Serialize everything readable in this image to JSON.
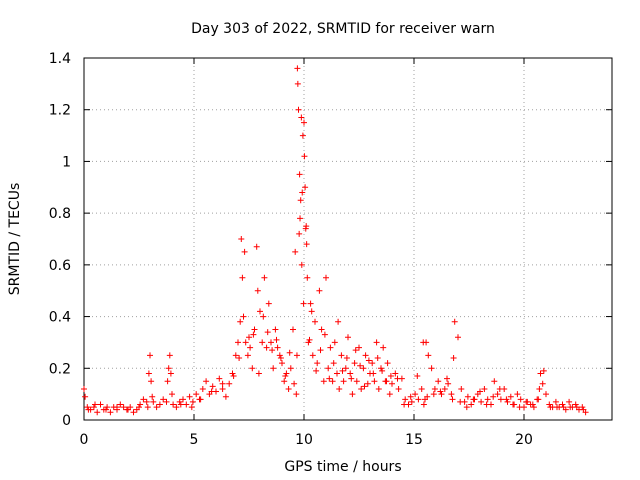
{
  "chart_data": {
    "type": "scatter",
    "title": "Day 303 of 2022, SRMTID for receiver warn",
    "xlabel": "GPS time / hours",
    "ylabel": "SRMTID / TECUs",
    "xlim": [
      0,
      24
    ],
    "ylim": [
      0,
      1.4
    ],
    "xticks": [
      0,
      5,
      10,
      15,
      20
    ],
    "xtick_labels": [
      "0",
      "5",
      "10",
      "15",
      "20"
    ],
    "yticks": [
      0,
      0.2,
      0.4,
      0.6,
      0.8,
      1.0,
      1.2,
      1.4
    ],
    "ytick_labels": [
      "0",
      "0.2",
      "0.4",
      "0.6",
      "0.8",
      "1",
      "1.2",
      "1.4"
    ],
    "grid": true,
    "marker": "+",
    "color": "#ff0000",
    "series": [
      {
        "name": "SRMTID",
        "x": [
          0.0,
          0.15,
          0.3,
          0.45,
          0.6,
          0.75,
          0.9,
          1.05,
          1.2,
          1.35,
          1.5,
          1.65,
          1.8,
          1.95,
          2.1,
          2.25,
          2.4,
          2.55,
          2.7,
          2.85,
          2.95,
          3.0,
          3.05,
          3.15,
          3.3,
          3.45,
          3.6,
          3.75,
          3.85,
          3.9,
          3.95,
          4.05,
          4.2,
          4.35,
          4.5,
          4.65,
          4.8,
          4.95,
          5.1,
          5.25,
          5.4,
          5.55,
          5.7,
          5.85,
          6.0,
          6.15,
          6.3,
          6.45,
          6.6,
          6.75,
          6.9,
          7.0,
          7.1,
          7.15,
          7.2,
          7.25,
          7.35,
          7.45,
          7.55,
          7.65,
          7.75,
          7.85,
          7.9,
          8.0,
          8.1,
          8.2,
          8.3,
          8.4,
          8.5,
          8.6,
          8.7,
          8.8,
          8.9,
          9.0,
          9.1,
          9.2,
          9.3,
          9.4,
          9.5,
          9.6,
          9.65,
          9.7,
          9.75,
          9.8,
          9.85,
          9.9,
          9.95,
          10.0,
          10.05,
          10.1,
          10.15,
          10.2,
          10.3,
          10.4,
          10.5,
          10.6,
          10.7,
          10.8,
          10.9,
          11.0,
          11.1,
          11.2,
          11.3,
          11.4,
          11.5,
          11.6,
          11.7,
          11.8,
          11.9,
          12.0,
          12.1,
          12.2,
          12.3,
          12.4,
          12.5,
          12.6,
          12.7,
          12.8,
          12.9,
          13.0,
          13.1,
          13.2,
          13.3,
          13.4,
          13.5,
          13.6,
          13.7,
          13.8,
          13.9,
          14.0,
          14.15,
          14.3,
          14.45,
          14.6,
          14.75,
          14.9,
          15.05,
          15.2,
          15.35,
          15.45,
          15.5,
          15.55,
          15.65,
          15.8,
          15.95,
          16.1,
          16.25,
          16.4,
          16.55,
          16.7,
          16.75,
          16.85,
          17.0,
          17.15,
          17.3,
          17.45,
          17.6,
          17.75,
          17.9,
          18.05,
          18.2,
          18.35,
          18.5,
          18.65,
          18.8,
          18.95,
          19.1,
          19.25,
          19.4,
          19.55,
          19.7,
          19.85,
          20.0,
          20.15,
          20.3,
          20.45,
          20.6,
          20.7,
          20.75,
          20.85,
          21.0,
          21.15,
          21.3,
          21.45,
          21.6,
          21.75,
          21.9,
          22.05,
          22.2,
          22.35,
          22.5,
          22.65,
          22.8,
          0.05,
          0.2,
          0.5,
          1.0,
          1.5,
          2.0,
          2.5,
          2.9,
          3.1,
          3.8,
          4.0,
          4.4,
          4.9,
          5.3,
          5.8,
          6.3,
          6.8,
          7.05,
          7.3,
          7.5,
          7.7,
          7.95,
          8.15,
          8.35,
          8.55,
          8.75,
          8.95,
          9.15,
          9.35,
          9.55,
          9.68,
          9.72,
          9.78,
          9.82,
          9.88,
          9.92,
          9.98,
          10.02,
          10.08,
          10.12,
          10.25,
          10.35,
          10.55,
          10.75,
          10.95,
          11.15,
          11.35,
          11.55,
          11.75,
          11.95,
          12.15,
          12.35,
          12.55,
          12.75,
          12.95,
          13.15,
          13.35,
          13.55,
          13.75,
          13.95,
          14.25,
          14.55,
          14.85,
          15.15,
          15.42,
          15.6,
          15.9,
          16.2,
          16.5,
          16.8,
          17.1,
          17.4,
          17.7,
          18.0,
          18.3,
          18.6,
          18.9,
          19.2,
          19.5,
          19.8,
          20.1,
          20.4,
          20.65,
          20.9,
          21.2,
          21.5,
          21.8,
          22.1,
          22.4,
          22.7
        ],
        "y": [
          0.12,
          0.05,
          0.04,
          0.05,
          0.03,
          0.06,
          0.04,
          0.05,
          0.03,
          0.05,
          0.04,
          0.06,
          0.05,
          0.04,
          0.05,
          0.03,
          0.04,
          0.06,
          0.08,
          0.07,
          0.18,
          0.25,
          0.15,
          0.07,
          0.05,
          0.06,
          0.08,
          0.07,
          0.2,
          0.25,
          0.18,
          0.06,
          0.05,
          0.07,
          0.08,
          0.06,
          0.09,
          0.07,
          0.1,
          0.08,
          0.12,
          0.15,
          0.1,
          0.13,
          0.11,
          0.16,
          0.12,
          0.09,
          0.14,
          0.18,
          0.25,
          0.3,
          0.38,
          0.7,
          0.55,
          0.4,
          0.3,
          0.25,
          0.28,
          0.2,
          0.35,
          0.67,
          0.5,
          0.42,
          0.3,
          0.55,
          0.28,
          0.45,
          0.3,
          0.2,
          0.35,
          0.28,
          0.25,
          0.22,
          0.15,
          0.18,
          0.12,
          0.2,
          0.35,
          0.65,
          0.1,
          1.36,
          1.2,
          0.95,
          0.85,
          0.6,
          1.1,
          1.15,
          0.9,
          0.75,
          0.55,
          0.3,
          0.45,
          0.25,
          0.38,
          0.22,
          0.5,
          0.35,
          0.15,
          0.55,
          0.2,
          0.28,
          0.15,
          0.3,
          0.18,
          0.12,
          0.25,
          0.15,
          0.2,
          0.32,
          0.18,
          0.1,
          0.22,
          0.15,
          0.28,
          0.12,
          0.2,
          0.25,
          0.14,
          0.18,
          0.22,
          0.15,
          0.3,
          0.12,
          0.2,
          0.28,
          0.15,
          0.22,
          0.1,
          0.14,
          0.18,
          0.12,
          0.16,
          0.08,
          0.06,
          0.07,
          0.1,
          0.08,
          0.12,
          0.06,
          0.08,
          0.3,
          0.25,
          0.2,
          0.12,
          0.15,
          0.1,
          0.12,
          0.14,
          0.1,
          0.08,
          0.38,
          0.32,
          0.12,
          0.07,
          0.09,
          0.06,
          0.08,
          0.1,
          0.07,
          0.12,
          0.08,
          0.06,
          0.15,
          0.1,
          0.08,
          0.12,
          0.07,
          0.09,
          0.06,
          0.1,
          0.08,
          0.05,
          0.07,
          0.06,
          0.05,
          0.08,
          0.12,
          0.18,
          0.14,
          0.1,
          0.06,
          0.05,
          0.07,
          0.05,
          0.06,
          0.04,
          0.07,
          0.05,
          0.06,
          0.04,
          0.05,
          0.03,
          0.09,
          0.04,
          0.06,
          0.04,
          0.05,
          0.04,
          0.05,
          0.05,
          0.09,
          0.15,
          0.1,
          0.06,
          0.05,
          0.08,
          0.11,
          0.14,
          0.17,
          0.24,
          0.65,
          0.32,
          0.33,
          0.18,
          0.4,
          0.34,
          0.27,
          0.31,
          0.24,
          0.17,
          0.26,
          0.14,
          0.25,
          1.3,
          0.72,
          0.78,
          1.17,
          0.88,
          0.45,
          1.02,
          0.74,
          0.68,
          0.31,
          0.42,
          0.19,
          0.27,
          0.33,
          0.16,
          0.22,
          0.38,
          0.19,
          0.24,
          0.16,
          0.27,
          0.21,
          0.13,
          0.23,
          0.18,
          0.24,
          0.19,
          0.15,
          0.17,
          0.16,
          0.06,
          0.09,
          0.17,
          0.3,
          0.09,
          0.1,
          0.11,
          0.16,
          0.24,
          0.07,
          0.05,
          0.08,
          0.11,
          0.06,
          0.09,
          0.12,
          0.08,
          0.06,
          0.05,
          0.07,
          0.06,
          0.08,
          0.19,
          0.05,
          0.05,
          0.05,
          0.05,
          0.05,
          0.04
        ]
      }
    ]
  }
}
